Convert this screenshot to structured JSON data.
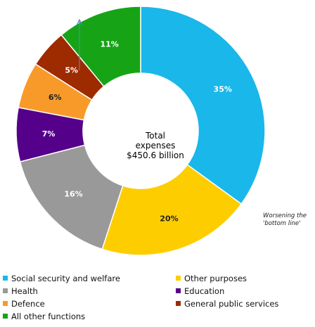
{
  "chart_data": {
    "type": "pie",
    "center_label": [
      "Total",
      "expenses",
      "$450.6 billion"
    ],
    "slices": [
      {
        "label": "Social security and welfare",
        "value": 35,
        "display": "35%",
        "color": "#1ab7ea"
      },
      {
        "label": "Other purposes",
        "value": 20,
        "display": "20%",
        "color": "#fecd00"
      },
      {
        "label": "Health",
        "value": 16,
        "display": "16%",
        "color": "#999999"
      },
      {
        "label": "Education",
        "value": 7,
        "display": "7%",
        "color": "#55008a"
      },
      {
        "label": "Defence",
        "value": 6,
        "display": "6%",
        "color": "#f89a2a"
      },
      {
        "label": "General public services",
        "value": 5,
        "display": "5%",
        "color": "#9e2a00"
      },
      {
        "label": "All other functions",
        "value": 11,
        "display": "11%",
        "color": "#16a416"
      }
    ],
    "legend_order": [
      0,
      1,
      2,
      3,
      4,
      5,
      6
    ],
    "annotation": [
      "Worsening the",
      "'bottom line'"
    ]
  }
}
